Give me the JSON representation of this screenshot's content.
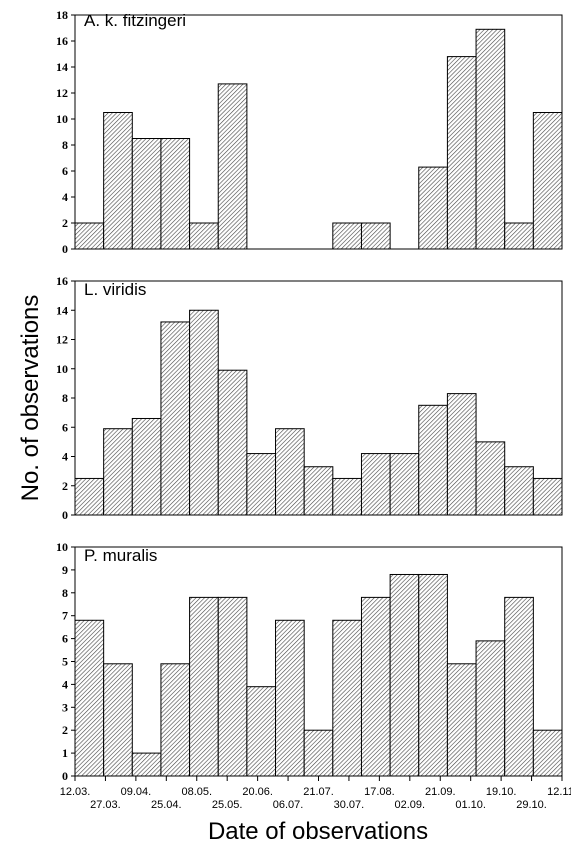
{
  "ylabel": "No. of observations",
  "xlabel": "Date of observations",
  "date_labels_top": [
    "12.03.",
    "09.04.",
    "08.05.",
    "20.06.",
    "21.07.",
    "17.08.",
    "21.09.",
    "19.10.",
    "12.11."
  ],
  "date_labels_bottom": [
    "27.03.",
    "25.04.",
    "25.05.",
    "06.07.",
    "30.07.",
    "02.09.",
    "01.10.",
    "29.10."
  ],
  "chart_data": [
    {
      "type": "bar",
      "title": "A. k. fitzingeri",
      "ylim": [
        0,
        18
      ],
      "yticks": [
        0,
        2,
        4,
        6,
        8,
        10,
        12,
        14,
        16,
        18
      ],
      "values": [
        2,
        10.5,
        8.5,
        8.5,
        2,
        12.7,
        0,
        0,
        0,
        2,
        2,
        0,
        6.3,
        14.8,
        16.9,
        2,
        10.5
      ]
    },
    {
      "type": "bar",
      "title": "L. viridis",
      "ylim": [
        0,
        16
      ],
      "yticks": [
        0,
        2,
        4,
        6,
        8,
        10,
        12,
        14,
        16
      ],
      "values": [
        2.5,
        5.9,
        6.6,
        13.2,
        14,
        9.9,
        4.2,
        5.9,
        3.3,
        2.5,
        4.2,
        4.2,
        7.5,
        8.3,
        5,
        3.3,
        2.5
      ]
    },
    {
      "type": "bar",
      "title": "P. muralis",
      "ylim": [
        0,
        10
      ],
      "yticks": [
        0,
        1,
        2,
        3,
        4,
        5,
        6,
        7,
        8,
        9,
        10
      ],
      "values": [
        6.8,
        4.9,
        1,
        4.9,
        7.8,
        7.8,
        3.9,
        6.8,
        2,
        6.8,
        7.8,
        8.8,
        8.8,
        4.9,
        5.9,
        7.8,
        2
      ]
    }
  ]
}
